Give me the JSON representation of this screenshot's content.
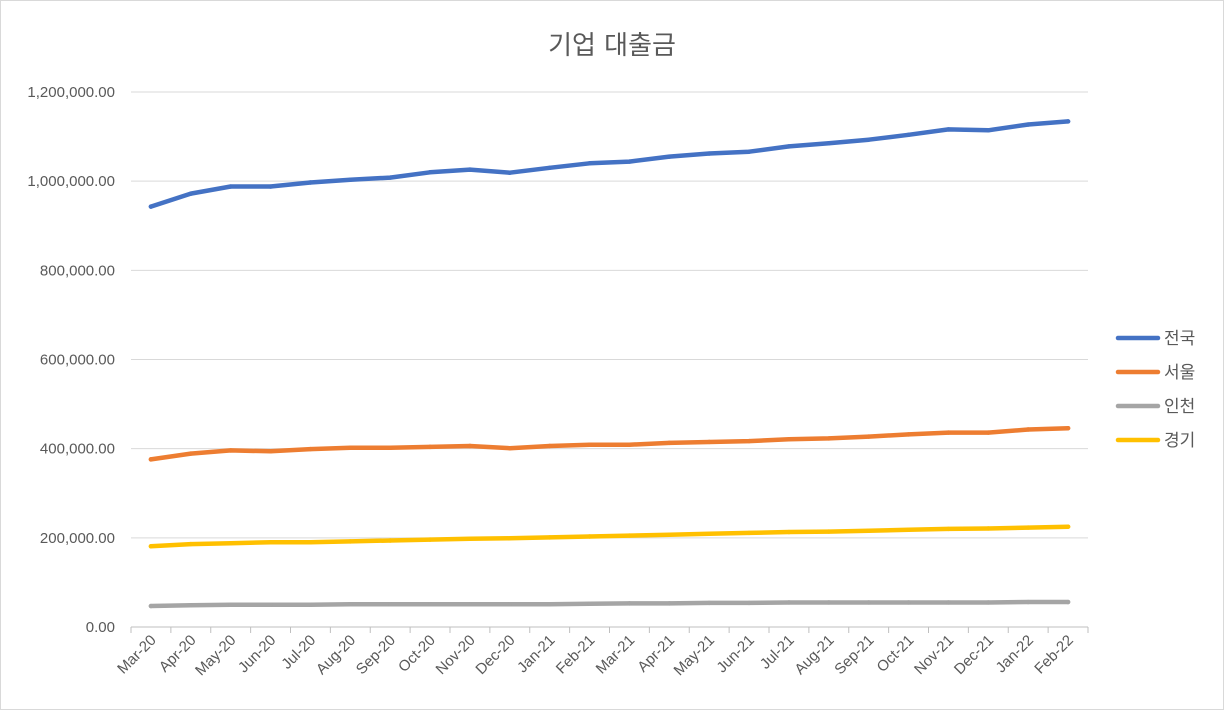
{
  "chart_data": {
    "type": "line",
    "title": "기업 대출금",
    "xlabel": "",
    "ylabel": "",
    "ylim": [
      0,
      1200000
    ],
    "y_ticks": [
      "0.00",
      "200,000.00",
      "400,000.00",
      "600,000.00",
      "800,000.00",
      "1,000,000.00",
      "1,200,000.00"
    ],
    "y_tick_values": [
      0,
      200000,
      400000,
      600000,
      800000,
      1000000,
      1200000
    ],
    "grid": true,
    "legend_position": "right",
    "categories": [
      "Mar-20",
      "Apr-20",
      "May-20",
      "Jun-20",
      "Jul-20",
      "Aug-20",
      "Sep-20",
      "Oct-20",
      "Nov-20",
      "Dec-20",
      "Jan-21",
      "Feb-21",
      "Mar-21",
      "Apr-21",
      "May-21",
      "Jun-21",
      "Jul-21",
      "Aug-21",
      "Sep-21",
      "Oct-21",
      "Nov-21",
      "Dec-21",
      "Jan-22",
      "Feb-22"
    ],
    "series": [
      {
        "name": "전국",
        "color": "#4472c4",
        "values": [
          943000,
          972000,
          988000,
          988000,
          997000,
          1003000,
          1008000,
          1020000,
          1026000,
          1019000,
          1030000,
          1040000,
          1044000,
          1055000,
          1062000,
          1066000,
          1078000,
          1085000,
          1093000,
          1104000,
          1116000,
          1114000,
          1127000,
          1134000
        ]
      },
      {
        "name": "서울",
        "color": "#ed7d31",
        "values": [
          376000,
          389000,
          396000,
          394000,
          399000,
          402000,
          402000,
          404000,
          406000,
          401000,
          406000,
          409000,
          409000,
          413000,
          415000,
          417000,
          421000,
          423000,
          427000,
          432000,
          436000,
          436000,
          443000,
          446000
        ]
      },
      {
        "name": "인천",
        "color": "#a5a5a5",
        "values": [
          47000,
          49000,
          50000,
          50000,
          50000,
          51000,
          51000,
          51000,
          51000,
          51000,
          51000,
          52000,
          53000,
          53000,
          54000,
          54000,
          55000,
          55000,
          55000,
          55000,
          55000,
          55000,
          56000,
          56000
        ]
      },
      {
        "name": "경기",
        "color": "#ffc000",
        "values": [
          181000,
          186000,
          188000,
          190000,
          190000,
          192000,
          194000,
          196000,
          198000,
          199000,
          201000,
          203000,
          205000,
          207000,
          209000,
          211000,
          213000,
          214000,
          216000,
          218000,
          220000,
          221000,
          223000,
          225000
        ]
      }
    ]
  }
}
